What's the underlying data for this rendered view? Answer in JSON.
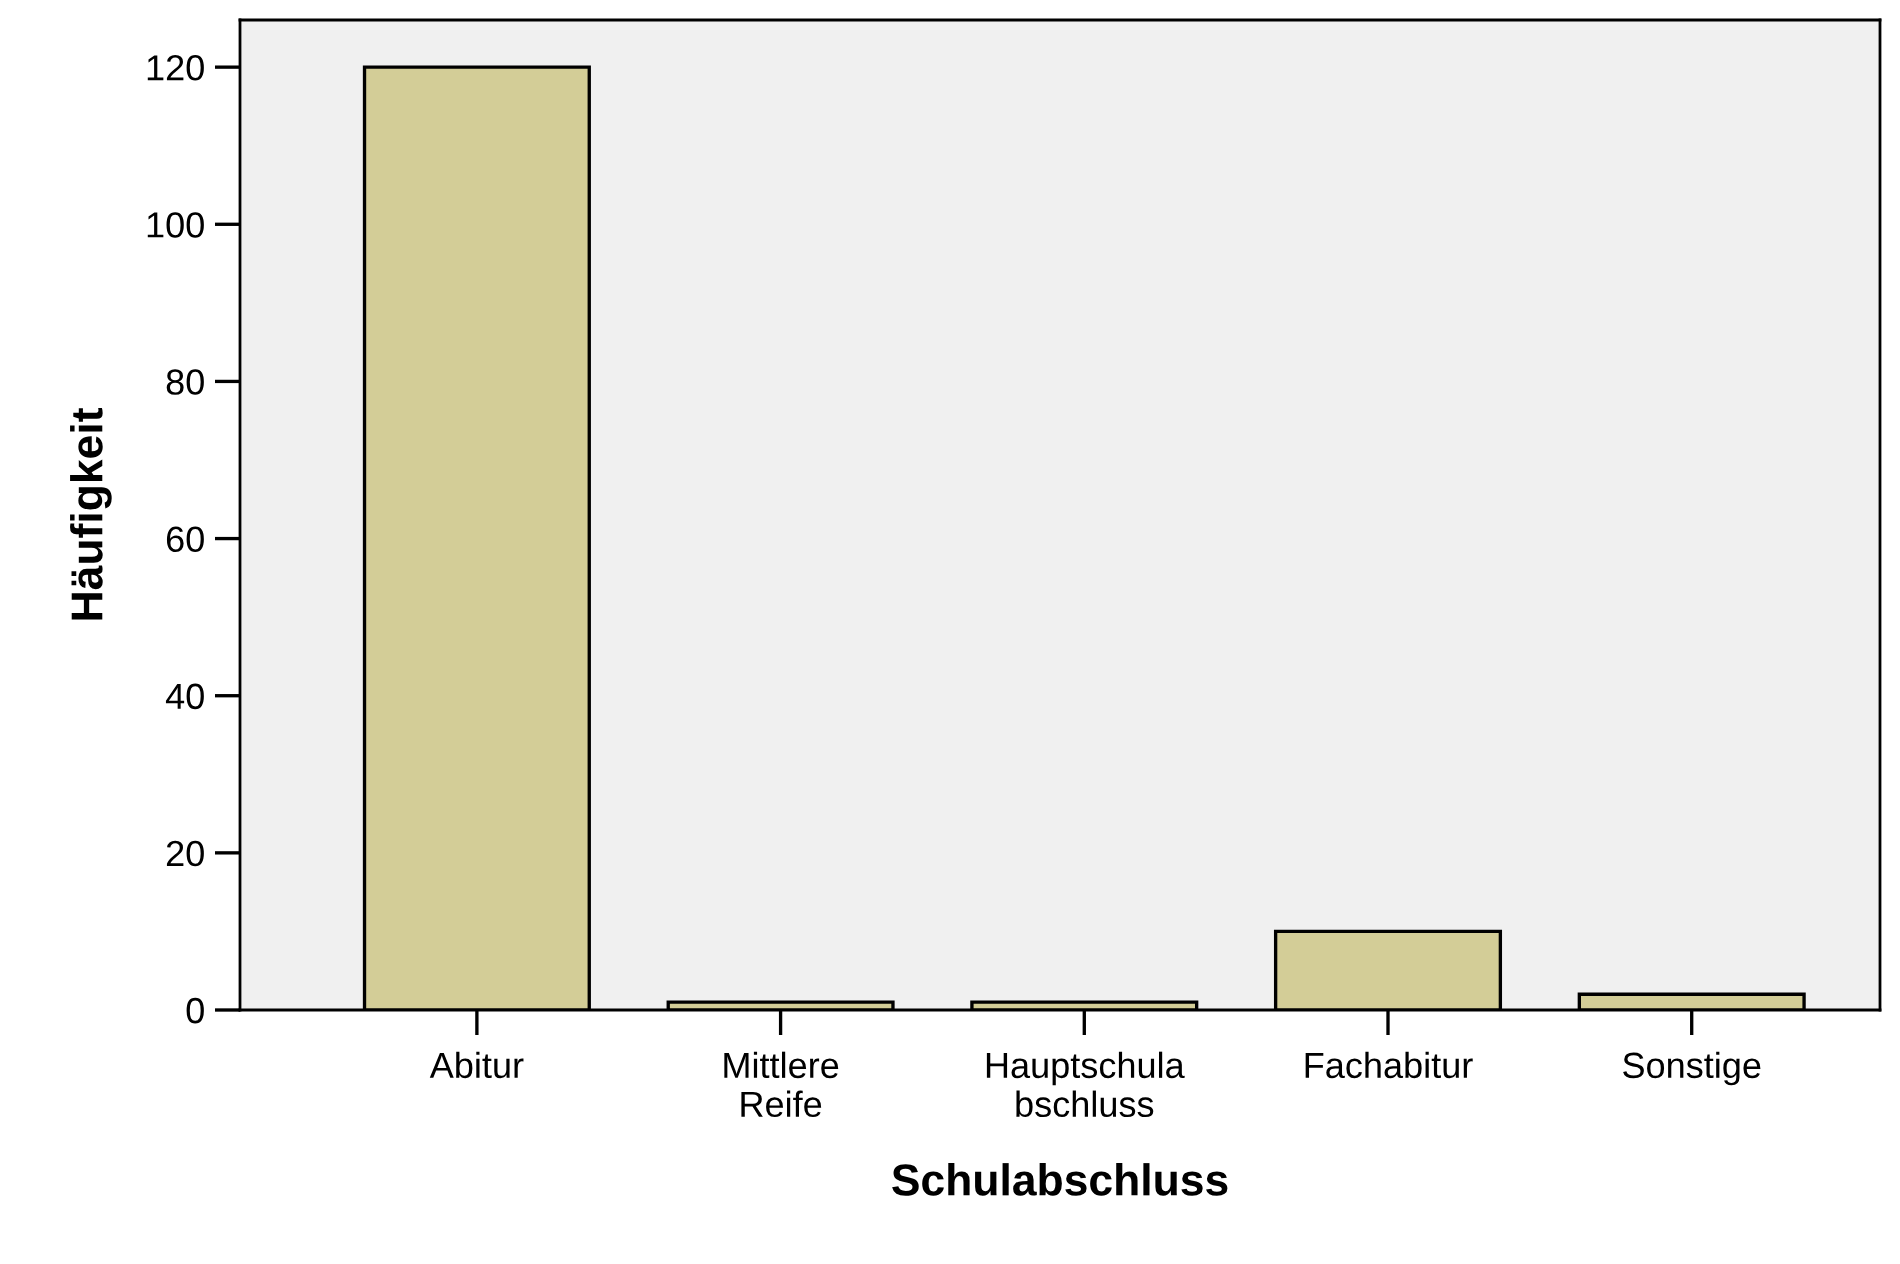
{
  "chart_data": {
    "type": "bar",
    "xlabel": "Schulabschluss",
    "ylabel": "Häufigkeit",
    "categories": [
      "Abitur",
      "Mittlere\nReife",
      "Hauptschula\nbschluss",
      "Fachabitur",
      "Sonstige"
    ],
    "values": [
      120,
      1,
      1,
      10,
      2
    ],
    "color": "#d3cd97",
    "ylim": [
      0,
      126
    ],
    "yticks": [
      0,
      20,
      40,
      60,
      80,
      100,
      120
    ],
    "grid": false,
    "legend": false
  }
}
